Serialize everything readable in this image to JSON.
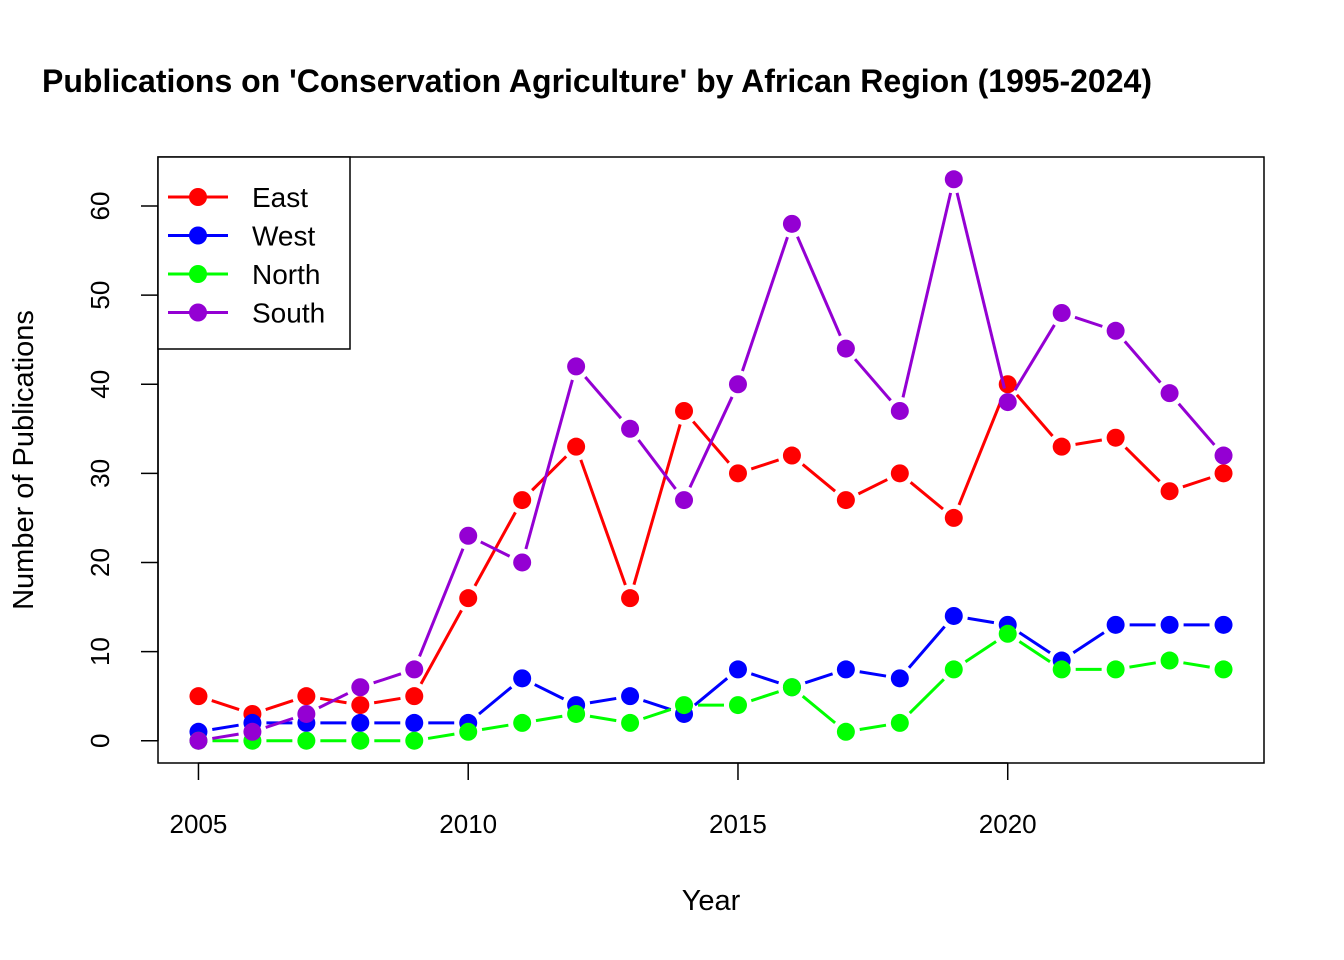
{
  "chart_data": {
    "type": "line",
    "title": "Publications on 'Conservation Agriculture' by African Region (1995-2024)",
    "xlabel": "Year",
    "ylabel": "Number of Publications",
    "x": [
      2005,
      2006,
      2007,
      2008,
      2009,
      2010,
      2011,
      2012,
      2013,
      2014,
      2015,
      2016,
      2017,
      2018,
      2019,
      2020,
      2021,
      2022,
      2023,
      2024
    ],
    "xlim": [
      2004.25,
      2024.75
    ],
    "ylim": [
      -2.5,
      65.5
    ],
    "x_ticks": [
      2005,
      2010,
      2015,
      2020
    ],
    "y_ticks": [
      0,
      10,
      20,
      30,
      40,
      50,
      60
    ],
    "grid": false,
    "legend_position": "top-left",
    "series": [
      {
        "name": "East",
        "color": "#ff0000",
        "dash": "segmented",
        "values": [
          5,
          3,
          5,
          4,
          5,
          16,
          27,
          33,
          16,
          37,
          30,
          32,
          27,
          30,
          25,
          40,
          33,
          34,
          28,
          30
        ]
      },
      {
        "name": "West",
        "color": "#0000ff",
        "dash": "segmented",
        "values": [
          1,
          2,
          2,
          2,
          2,
          2,
          7,
          4,
          5,
          3,
          8,
          6,
          8,
          7,
          14,
          13,
          9,
          13,
          13,
          13
        ]
      },
      {
        "name": "North",
        "color": "#00ff00",
        "dash": "segmented",
        "values": [
          0,
          0,
          0,
          0,
          0,
          1,
          2,
          3,
          2,
          4,
          4,
          6,
          1,
          2,
          8,
          12,
          8,
          8,
          9,
          8
        ]
      },
      {
        "name": "South",
        "color": "#9400d3",
        "dash": "segmented",
        "values": [
          0,
          1,
          3,
          6,
          8,
          23,
          20,
          42,
          35,
          27,
          40,
          58,
          44,
          37,
          63,
          38,
          48,
          46,
          39,
          32
        ]
      }
    ]
  }
}
